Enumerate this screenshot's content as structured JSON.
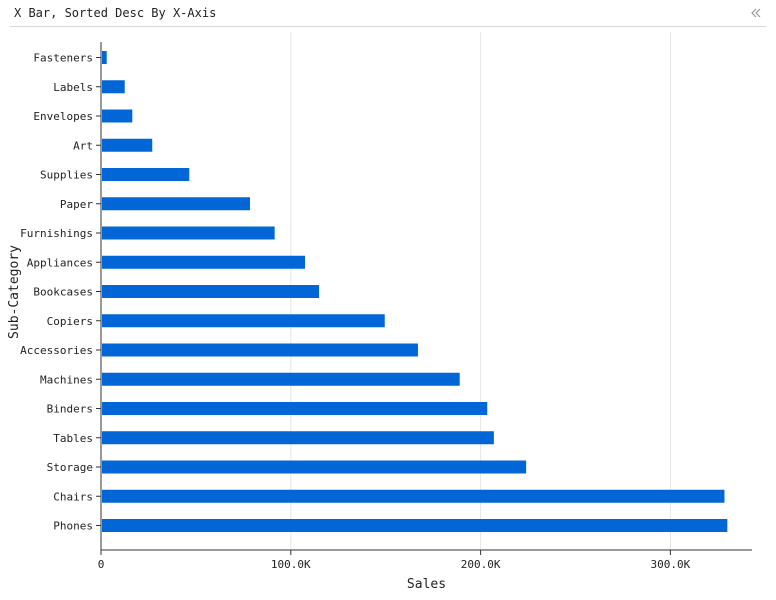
{
  "panel": {
    "title": "X Bar, Sorted Desc By X-Axis",
    "collapse_icon": "double-chevron-left-icon"
  },
  "chart_data": {
    "type": "bar",
    "orientation": "horizontal",
    "categories": [
      "Fasteners",
      "Labels",
      "Envelopes",
      "Art",
      "Supplies",
      "Paper",
      "Furnishings",
      "Appliances",
      "Bookcases",
      "Copiers",
      "Accessories",
      "Machines",
      "Binders",
      "Tables",
      "Storage",
      "Chairs",
      "Phones"
    ],
    "values": [
      3000,
      12500,
      16500,
      27000,
      46500,
      78500,
      91500,
      107500,
      114900,
      149500,
      167000,
      189000,
      203500,
      207000,
      224000,
      328500,
      330000
    ],
    "xlabel": "Sales",
    "ylabel": "Sub-Category",
    "xlim": [
      0,
      343000
    ],
    "xticks": [
      {
        "value": 0,
        "label": "0"
      },
      {
        "value": 100000,
        "label": "100.0K"
      },
      {
        "value": 200000,
        "label": "200.0K"
      },
      {
        "value": 300000,
        "label": "300.0K"
      }
    ],
    "grid": "vertical",
    "bar_color": "#0366d6"
  }
}
